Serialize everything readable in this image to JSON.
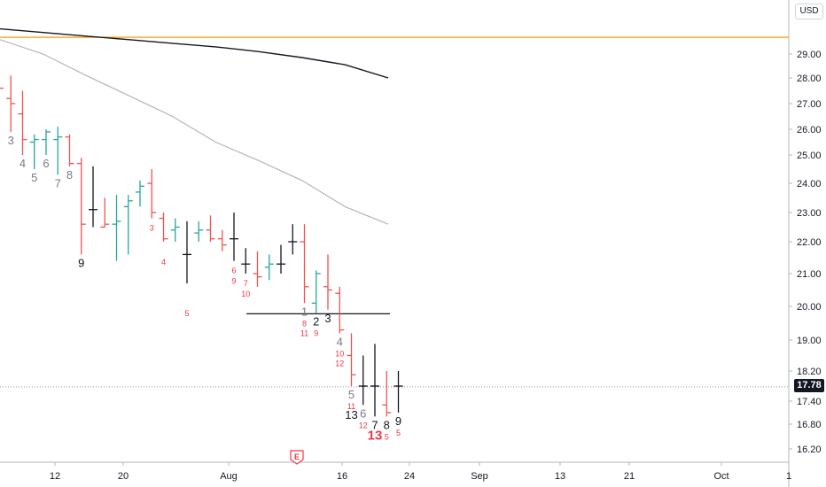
{
  "chart_data": {
    "type": "ohlc",
    "currency_label": "USD",
    "last_price_label": "17.78",
    "y_ticks": [
      "29.00",
      "28.00",
      "27.00",
      "26.00",
      "25.00",
      "24.00",
      "23.00",
      "22.00",
      "21.00",
      "20.00",
      "19.00",
      "18.20",
      "17.40",
      "16.80",
      "16.20"
    ],
    "x_ticks": [
      "12",
      "20",
      "Aug",
      "16",
      "24",
      "Sep",
      "13",
      "21",
      "Oct",
      "1"
    ],
    "earnings_marker": "E",
    "resistance_level": 29.7,
    "support_level": 19.78,
    "last_price": 17.78,
    "colors": {
      "up": "#26a69a",
      "down": "#ef5350",
      "neutral": "#131722",
      "ma_long": "#131722",
      "ma_short": "#b2b5be",
      "resistance": "#ff9800",
      "count_red": "#f23645",
      "count_gray": "#787b86"
    },
    "bars": [
      {
        "o": 27.4,
        "h": 28.0,
        "l": 27.3,
        "c": 27.6,
        "t": "d"
      },
      {
        "o": 27.2,
        "h": 28.1,
        "l": 25.9,
        "c": 27.0,
        "t": "d"
      },
      {
        "o": 26.6,
        "h": 27.5,
        "l": 25.0,
        "c": 25.6,
        "t": "d"
      },
      {
        "o": 25.5,
        "h": 25.8,
        "l": 24.5,
        "c": 25.6,
        "t": "u"
      },
      {
        "o": 25.6,
        "h": 26.0,
        "l": 25.0,
        "c": 25.9,
        "t": "u"
      },
      {
        "o": 25.6,
        "h": 26.1,
        "l": 24.3,
        "c": 25.7,
        "t": "u"
      },
      {
        "o": 25.7,
        "h": 25.8,
        "l": 24.6,
        "c": 24.7,
        "t": "d"
      },
      {
        "o": 24.7,
        "h": 24.9,
        "l": 21.6,
        "c": 22.6,
        "t": "d"
      },
      {
        "o": 23.1,
        "h": 24.6,
        "l": 22.5,
        "c": 23.1,
        "t": "n"
      },
      {
        "o": 22.5,
        "h": 23.5,
        "l": 22.5,
        "c": 22.6,
        "t": "d"
      },
      {
        "o": 22.6,
        "h": 23.6,
        "l": 21.4,
        "c": 22.7,
        "t": "u"
      },
      {
        "o": 23.2,
        "h": 23.6,
        "l": 21.6,
        "c": 23.4,
        "t": "u"
      },
      {
        "o": 23.7,
        "h": 24.1,
        "l": 23.2,
        "c": 23.9,
        "t": "u"
      },
      {
        "o": 24.0,
        "h": 24.5,
        "l": 22.8,
        "c": 23.0,
        "t": "d"
      },
      {
        "o": 22.8,
        "h": 23.0,
        "l": 22.0,
        "c": 22.1,
        "t": "d"
      },
      {
        "o": 22.4,
        "h": 22.8,
        "l": 22.0,
        "c": 22.5,
        "t": "u"
      },
      {
        "o": 21.6,
        "h": 22.7,
        "l": 20.7,
        "c": 21.6,
        "t": "n"
      },
      {
        "o": 22.3,
        "h": 22.7,
        "l": 22.0,
        "c": 22.4,
        "t": "u"
      },
      {
        "o": 22.4,
        "h": 22.9,
        "l": 22.0,
        "c": 22.1,
        "t": "d"
      },
      {
        "o": 22.1,
        "h": 22.4,
        "l": 21.7,
        "c": 21.9,
        "t": "d"
      },
      {
        "o": 22.1,
        "h": 23.0,
        "l": 21.4,
        "c": 22.1,
        "t": "n"
      },
      {
        "o": 21.3,
        "h": 21.8,
        "l": 21.0,
        "c": 21.3,
        "t": "n"
      },
      {
        "o": 21.0,
        "h": 21.7,
        "l": 20.6,
        "c": 20.9,
        "t": "d"
      },
      {
        "o": 21.2,
        "h": 21.6,
        "l": 20.8,
        "c": 21.3,
        "t": "u"
      },
      {
        "o": 21.3,
        "h": 21.9,
        "l": 21.0,
        "c": 21.3,
        "t": "n"
      },
      {
        "o": 22.0,
        "h": 22.6,
        "l": 21.6,
        "c": 22.0,
        "t": "n"
      },
      {
        "o": 22.0,
        "h": 22.6,
        "l": 20.1,
        "c": 20.6,
        "t": "d"
      },
      {
        "o": 20.1,
        "h": 21.1,
        "l": 19.8,
        "c": 21.0,
        "t": "u"
      },
      {
        "o": 20.6,
        "h": 21.6,
        "l": 19.9,
        "c": 20.5,
        "t": "d"
      },
      {
        "o": 20.4,
        "h": 20.6,
        "l": 19.2,
        "c": 19.3,
        "t": "d"
      },
      {
        "o": 18.6,
        "h": 19.2,
        "l": 17.8,
        "c": 18.1,
        "t": "d"
      },
      {
        "o": 17.8,
        "h": 18.6,
        "l": 17.3,
        "c": 17.8,
        "t": "n"
      },
      {
        "o": 17.8,
        "h": 18.9,
        "l": 17.0,
        "c": 17.8,
        "t": "n"
      },
      {
        "o": 17.3,
        "h": 18.2,
        "l": 17.0,
        "c": 17.1,
        "t": "d"
      },
      {
        "o": 17.8,
        "h": 18.2,
        "l": 17.1,
        "c": 17.8,
        "t": "n"
      }
    ],
    "ma_long": [
      30.05,
      29.9,
      29.75,
      29.6,
      29.45,
      29.3,
      29.1,
      28.85,
      28.55,
      28.0
    ],
    "ma_short": [
      29.6,
      29.0,
      28.1,
      27.3,
      26.5,
      25.5,
      24.8,
      24.1,
      23.2,
      22.6
    ],
    "count_labels": [
      {
        "text": "3",
        "bar": 1,
        "pos": "below",
        "color": "gray",
        "size": "lg"
      },
      {
        "text": "4",
        "bar": 2,
        "pos": "below",
        "color": "gray",
        "size": "lg"
      },
      {
        "text": "5",
        "bar": 3,
        "pos": "below",
        "color": "gray",
        "size": "lg"
      },
      {
        "text": "6",
        "bar": 4,
        "pos": "below",
        "color": "gray",
        "size": "lg"
      },
      {
        "text": "7",
        "bar": 5,
        "pos": "below",
        "color": "gray",
        "size": "lg"
      },
      {
        "text": "8",
        "bar": 6,
        "pos": "below",
        "color": "gray",
        "size": "lg"
      },
      {
        "text": "9",
        "bar": 7,
        "pos": "below",
        "color": "dark",
        "size": "lg"
      },
      {
        "text": "3",
        "bar": 13,
        "pos": "below",
        "color": "red",
        "size": "sm"
      },
      {
        "text": "4",
        "bar": 14,
        "pos": "below2",
        "color": "red",
        "size": "sm"
      },
      {
        "text": "5",
        "bar": 16,
        "pos": "below3",
        "color": "red",
        "size": "sm"
      },
      {
        "text": "6",
        "bar": 20,
        "pos": "below",
        "color": "red",
        "size": "sm"
      },
      {
        "text": "9",
        "bar": 20,
        "pos": "below2",
        "color": "red",
        "size": "sm"
      },
      {
        "text": "7",
        "bar": 21,
        "pos": "below",
        "color": "red",
        "size": "sm"
      },
      {
        "text": "10",
        "bar": 21,
        "pos": "below2",
        "color": "red",
        "size": "sm"
      },
      {
        "text": "1",
        "bar": 26,
        "pos": "below",
        "color": "gray",
        "size": "lg"
      },
      {
        "text": "8",
        "bar": 26,
        "pos": "below2",
        "color": "red",
        "size": "sm"
      },
      {
        "text": "11",
        "bar": 26,
        "pos": "below3",
        "color": "red",
        "size": "sm"
      },
      {
        "text": "2",
        "bar": 27,
        "pos": "below",
        "color": "dark",
        "size": "lg"
      },
      {
        "text": "9",
        "bar": 27,
        "pos": "below2",
        "color": "red",
        "size": "sm"
      },
      {
        "text": "3",
        "bar": 28,
        "pos": "below",
        "color": "dark",
        "size": "lg"
      },
      {
        "text": "4",
        "bar": 29,
        "pos": "below",
        "color": "gray",
        "size": "lg"
      },
      {
        "text": "10",
        "bar": 29,
        "pos": "below2",
        "color": "red",
        "size": "sm"
      },
      {
        "text": "12",
        "bar": 29,
        "pos": "below3",
        "color": "red",
        "size": "sm"
      },
      {
        "text": "5",
        "bar": 30,
        "pos": "below",
        "color": "gray",
        "size": "lg"
      },
      {
        "text": "11",
        "bar": 30,
        "pos": "below2",
        "color": "red",
        "size": "sm"
      },
      {
        "text": "13",
        "bar": 30,
        "pos": "below3",
        "color": "dark",
        "size": "lg"
      },
      {
        "text": "6",
        "bar": 31,
        "pos": "below",
        "color": "gray",
        "size": "lg"
      },
      {
        "text": "12",
        "bar": 31,
        "pos": "below2",
        "color": "red",
        "size": "sm"
      },
      {
        "text": "7",
        "bar": 32,
        "pos": "below",
        "color": "dark",
        "size": "lg"
      },
      {
        "text": "13",
        "bar": 32,
        "pos": "below2",
        "color": "redbold",
        "size": "xl"
      },
      {
        "text": "8",
        "bar": 33,
        "pos": "below",
        "color": "dark",
        "size": "lg"
      },
      {
        "text": "5",
        "bar": 33,
        "pos": "below2",
        "color": "red",
        "size": "sm"
      },
      {
        "text": "9",
        "bar": 34,
        "pos": "below",
        "color": "dark",
        "size": "lg"
      },
      {
        "text": "5",
        "bar": 34,
        "pos": "below2",
        "color": "red",
        "size": "sm"
      }
    ]
  }
}
